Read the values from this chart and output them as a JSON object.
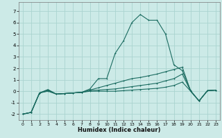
{
  "xlabel": "Humidex (Indice chaleur)",
  "background_color": "#cceae7",
  "grid_color": "#aad4d0",
  "line_color": "#1a6b60",
  "xlim": [
    -0.5,
    23.5
  ],
  "ylim": [
    -2.5,
    7.8
  ],
  "xticks": [
    0,
    1,
    2,
    3,
    4,
    5,
    6,
    7,
    8,
    9,
    10,
    11,
    12,
    13,
    14,
    15,
    16,
    17,
    18,
    19,
    20,
    21,
    22,
    23
  ],
  "yticks": [
    -2,
    -1,
    0,
    1,
    2,
    3,
    4,
    5,
    6,
    7
  ],
  "series": [
    {
      "x": [
        0,
        1,
        2,
        3,
        4,
        5,
        6,
        7,
        8,
        9,
        10,
        11,
        12,
        13,
        14,
        15,
        16,
        17,
        18,
        19,
        20,
        21,
        22,
        23
      ],
      "y": [
        -2.0,
        -1.85,
        -0.15,
        0.15,
        -0.25,
        -0.2,
        -0.15,
        -0.1,
        0.2,
        1.1,
        1.1,
        3.3,
        4.4,
        6.0,
        6.7,
        6.2,
        6.2,
        5.0,
        2.3,
        1.8,
        0.05,
        -0.85,
        0.05,
        0.1
      ]
    },
    {
      "x": [
        0,
        1,
        2,
        3,
        4,
        5,
        6,
        7,
        8,
        9,
        10,
        11,
        12,
        13,
        14,
        15,
        16,
        17,
        18,
        19,
        20,
        21,
        22,
        23
      ],
      "y": [
        -2.0,
        -1.85,
        -0.15,
        0.1,
        -0.25,
        -0.2,
        -0.15,
        -0.1,
        0.1,
        0.3,
        0.5,
        0.7,
        0.9,
        1.1,
        1.2,
        1.35,
        1.5,
        1.7,
        1.9,
        2.1,
        0.0,
        -0.85,
        0.05,
        0.1
      ]
    },
    {
      "x": [
        0,
        1,
        2,
        3,
        4,
        5,
        6,
        7,
        8,
        9,
        10,
        11,
        12,
        13,
        14,
        15,
        16,
        17,
        18,
        19,
        20,
        21,
        22,
        23
      ],
      "y": [
        -2.0,
        -1.85,
        -0.15,
        0.05,
        -0.25,
        -0.2,
        -0.15,
        -0.1,
        0.05,
        0.1,
        0.15,
        0.2,
        0.3,
        0.4,
        0.5,
        0.6,
        0.7,
        0.9,
        1.1,
        1.5,
        0.0,
        -0.85,
        0.05,
        0.1
      ]
    },
    {
      "x": [
        0,
        1,
        2,
        3,
        4,
        5,
        6,
        7,
        8,
        9,
        10,
        11,
        12,
        13,
        14,
        15,
        16,
        17,
        18,
        19,
        20,
        21,
        22,
        23
      ],
      "y": [
        -2.0,
        -1.85,
        -0.15,
        0.0,
        -0.25,
        -0.2,
        -0.15,
        -0.1,
        0.0,
        0.0,
        0.0,
        0.0,
        0.05,
        0.1,
        0.15,
        0.2,
        0.25,
        0.35,
        0.5,
        0.8,
        0.0,
        -0.85,
        0.05,
        0.1
      ]
    }
  ]
}
